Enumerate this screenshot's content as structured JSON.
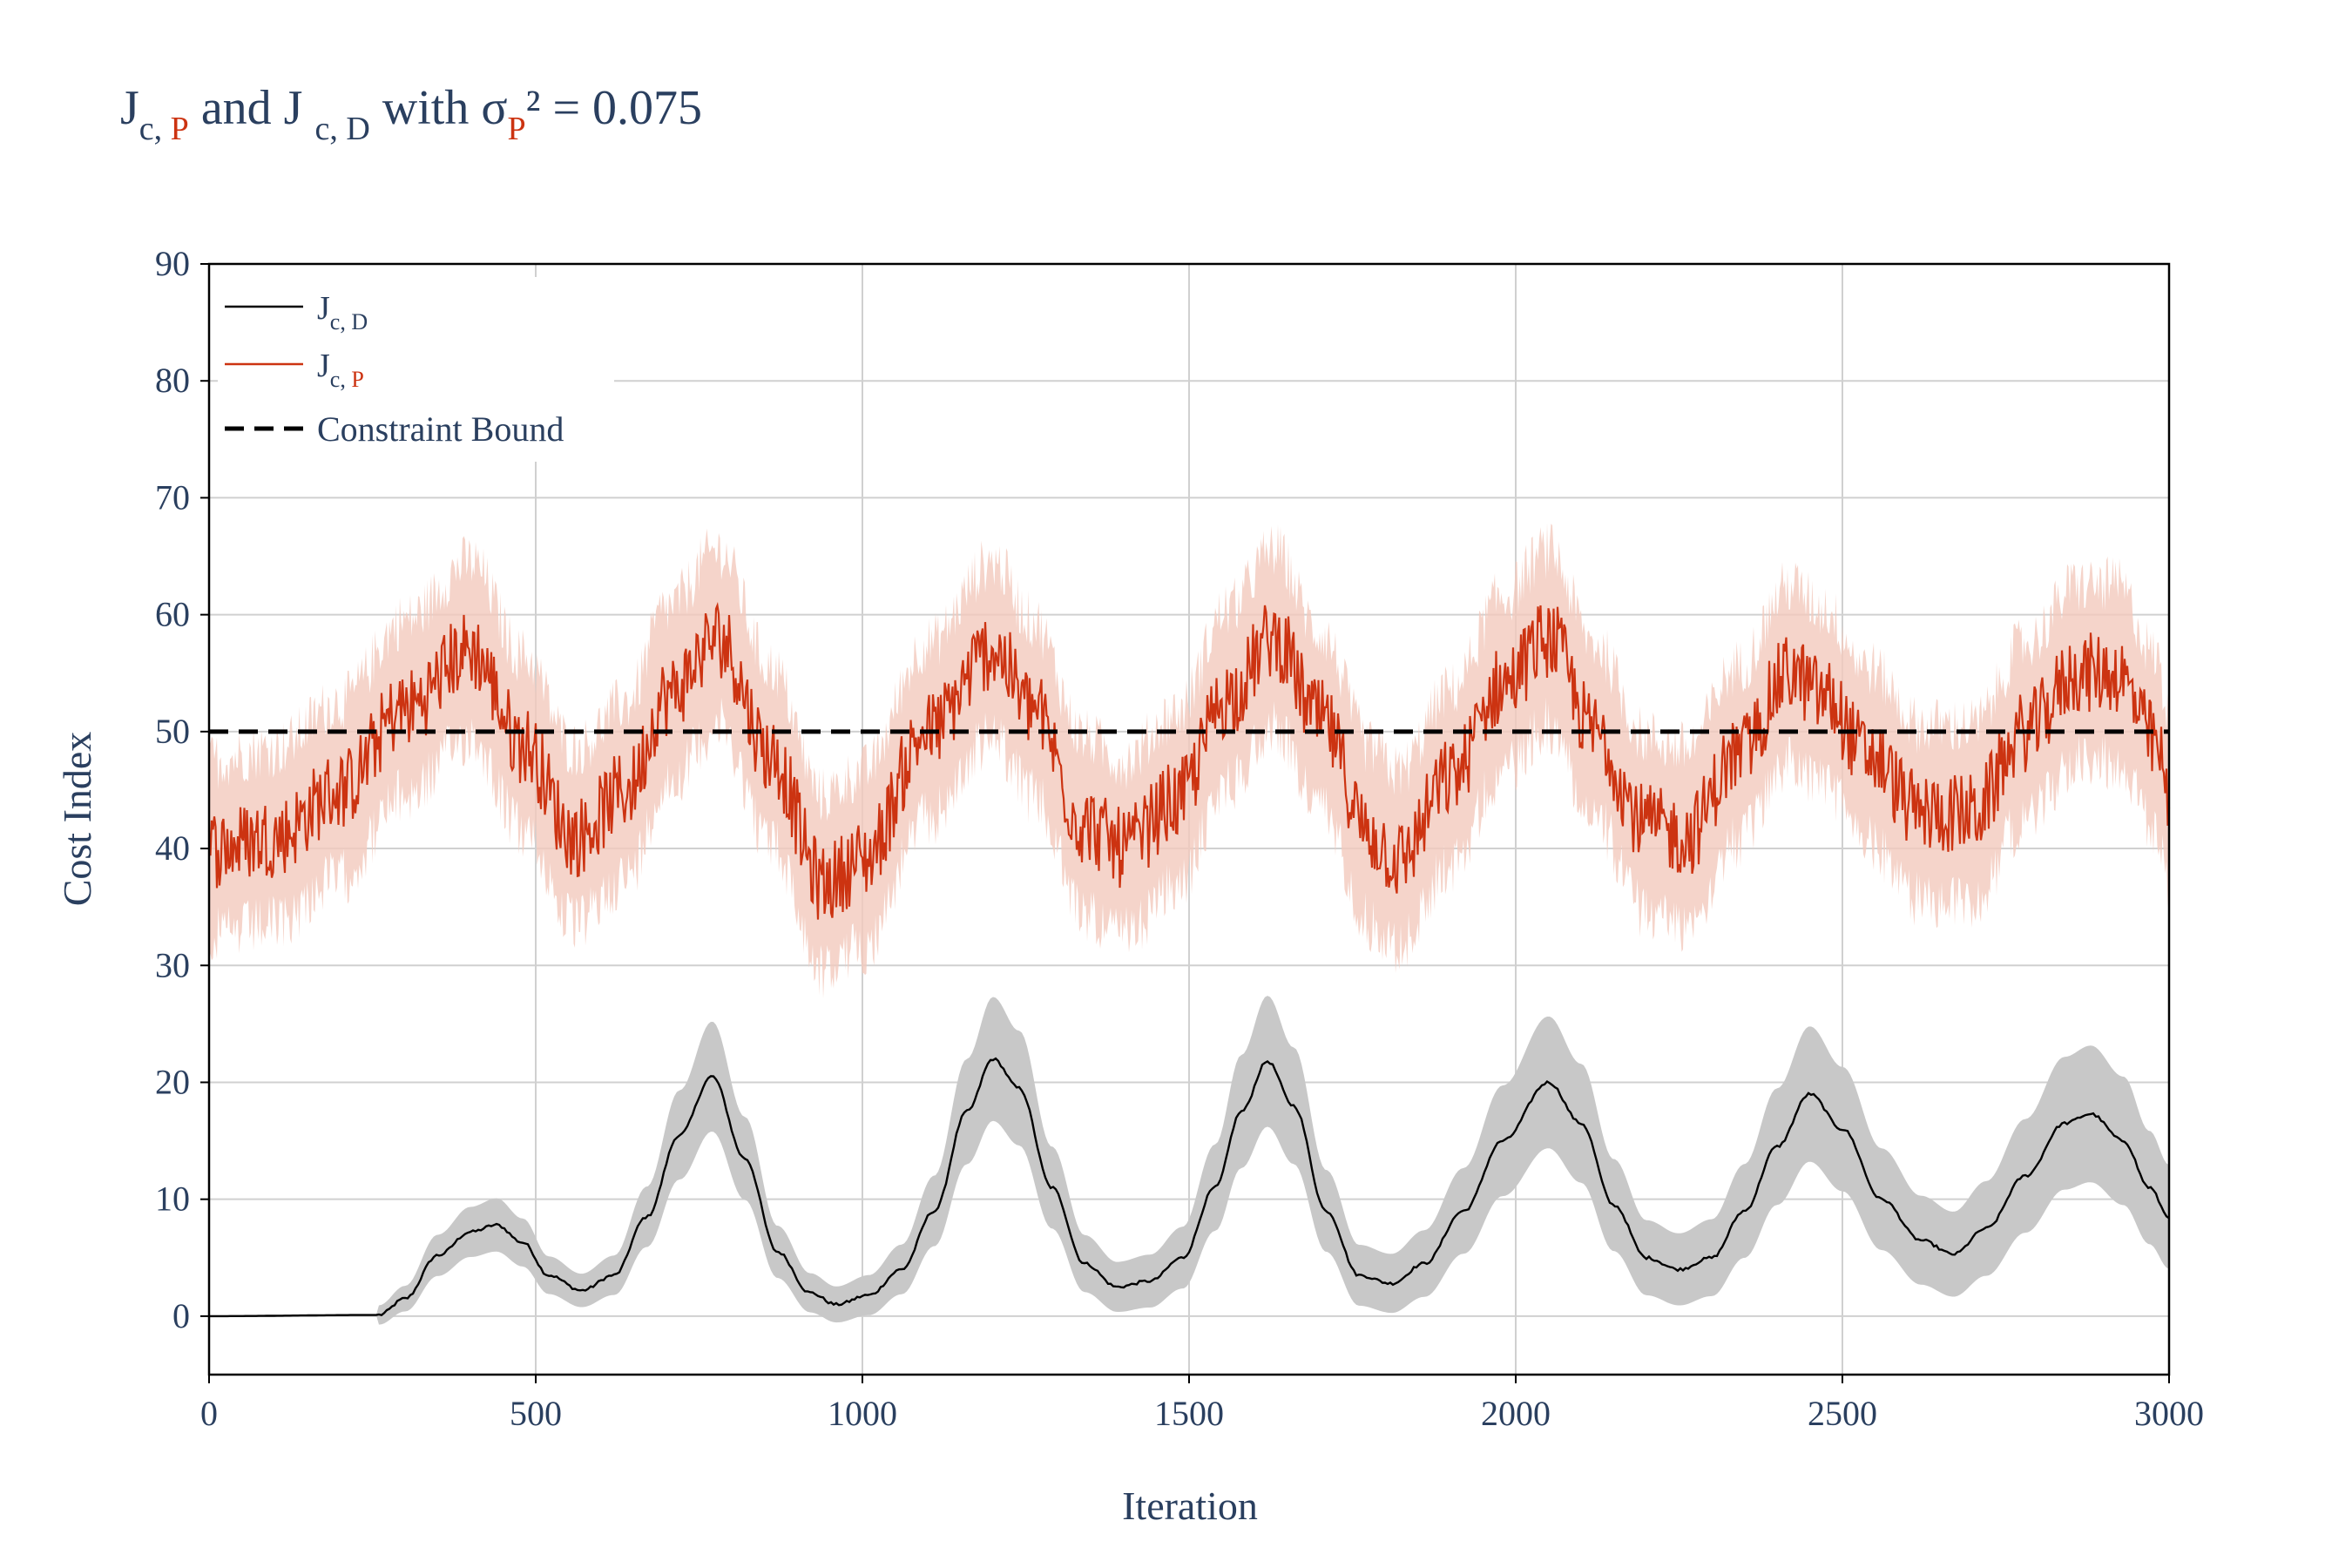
{
  "title": {
    "j1": "J",
    "sub1": "c, ",
    "sub1_red": "P",
    "mid": " and J ",
    "sub2": "c, D",
    "with": "  with σ",
    "sub3_red": "P",
    "tail": "² = 0.075"
  },
  "legend": {
    "d_main": "J",
    "d_sub": "c, D",
    "p_main": "J",
    "p_sub_a": "c, ",
    "p_sub_b": "P",
    "bound": "Constraint Bound"
  },
  "colors": {
    "jd_line": "#000000",
    "jd_band": "#c8c8c8",
    "jp_line": "#cc3311",
    "jp_band": "#f3c9bd",
    "bound": "#000000",
    "grid": "#d0d0d0",
    "axis_text": "#2a3f5f"
  },
  "chart_data": {
    "type": "line",
    "title": "J c, P and J c, D with σP² = 0.075",
    "xlabel": "Iteration",
    "ylabel": "Cost Index",
    "xlim": [
      0,
      3000
    ],
    "ylim": [
      -5,
      90
    ],
    "x_ticks": [
      0,
      500,
      1000,
      1500,
      2000,
      2500,
      3000
    ],
    "y_ticks": [
      0,
      10,
      20,
      30,
      40,
      50,
      60,
      70,
      80,
      90
    ],
    "x_tick_labels": [
      "0",
      "500",
      "1000",
      "1500",
      "2000",
      "2500",
      "3000"
    ],
    "y_tick_labels": [
      "0",
      "10",
      "20",
      "30",
      "40",
      "50",
      "60",
      "70",
      "80",
      "90"
    ],
    "grid": true,
    "legend_position": "top-left",
    "constraint_bound": 50,
    "series": [
      {
        "name": "J c, D",
        "x": [
          0,
          260,
          300,
          350,
          400,
          440,
          480,
          520,
          570,
          620,
          670,
          720,
          770,
          820,
          870,
          920,
          960,
          1010,
          1060,
          1110,
          1160,
          1200,
          1240,
          1290,
          1340,
          1390,
          1440,
          1490,
          1540,
          1580,
          1620,
          1660,
          1710,
          1760,
          1810,
          1860,
          1920,
          1980,
          2050,
          2100,
          2150,
          2200,
          2250,
          2300,
          2350,
          2400,
          2450,
          2500,
          2560,
          2620,
          2670,
          2720,
          2780,
          2840,
          2880,
          2930,
          2970,
          3000
        ],
        "values": [
          0,
          0.1,
          1.5,
          5.2,
          7.2,
          7.8,
          6.3,
          3.5,
          2.2,
          3.5,
          8.5,
          15.5,
          20.5,
          13.5,
          5.5,
          2.0,
          1.0,
          1.8,
          4.0,
          9.0,
          17.5,
          22.0,
          19.5,
          11.0,
          4.5,
          2.5,
          3.0,
          5.0,
          11.0,
          17.5,
          21.8,
          18.0,
          9.0,
          3.5,
          2.8,
          4.5,
          9.0,
          15.0,
          20.0,
          16.5,
          9.5,
          5.0,
          4.0,
          5.0,
          9.0,
          14.5,
          19.0,
          16.0,
          10.0,
          6.5,
          5.3,
          7.5,
          12.0,
          16.5,
          17.3,
          15.0,
          11.0,
          8.5
        ]
      },
      {
        "name": "J c, P",
        "x": [
          0,
          100,
          200,
          300,
          400,
          480,
          560,
          640,
          700,
          780,
          860,
          940,
          1000,
          1100,
          1200,
          1260,
          1340,
          1400,
          1480,
          1560,
          1630,
          1700,
          1780,
          1820,
          1900,
          1980,
          2050,
          2120,
          2200,
          2260,
          2340,
          2420,
          2470,
          2540,
          2620,
          2700,
          2780,
          2860,
          2920,
          2980,
          3000
        ],
        "values": [
          40,
          41,
          45,
          52,
          57,
          49,
          41,
          45,
          53,
          58,
          48,
          37,
          39,
          50,
          57,
          52,
          42,
          40,
          44,
          53,
          58,
          51,
          41,
          39,
          46,
          54,
          58,
          50,
          42,
          41,
          48,
          55,
          53,
          48,
          43,
          43,
          50,
          55,
          55,
          49,
          44
        ]
      }
    ]
  }
}
